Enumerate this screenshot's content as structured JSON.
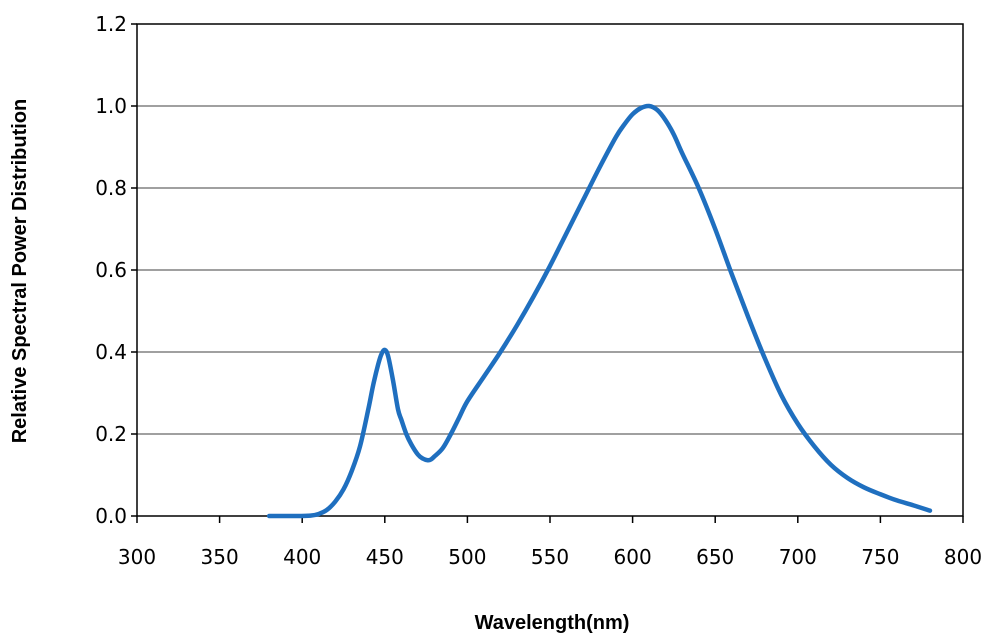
{
  "chart_data": {
    "type": "line",
    "title": "",
    "xlabel": "Wavelength(nm)",
    "ylabel": "Relative Spectral Power Distribution",
    "xlim": [
      300,
      800
    ],
    "ylim": [
      0,
      1.2
    ],
    "x_ticks": [
      300,
      350,
      400,
      450,
      500,
      550,
      600,
      650,
      700,
      750,
      800
    ],
    "y_ticks": [
      0.0,
      0.2,
      0.4,
      0.6,
      0.8,
      1.0,
      1.2
    ],
    "y_tick_labels": [
      "0.0",
      "0.2",
      "0.4",
      "0.6",
      "0.8",
      "1.0",
      "1.2"
    ],
    "grid": "horizontal",
    "legend": "none",
    "line_color": "#1f6fbf",
    "gridline_color": "#808080",
    "series": [
      {
        "x": [
          380,
          395,
          405,
          410,
          415,
          420,
          425,
          430,
          435,
          440,
          443,
          446,
          448,
          450,
          452,
          455,
          458,
          460,
          463,
          466,
          470,
          473,
          476,
          478,
          480,
          485,
          490,
          495,
          500,
          510,
          520,
          530,
          540,
          550,
          560,
          570,
          580,
          590,
          595,
          600,
          605,
          610,
          615,
          620,
          625,
          630,
          640,
          650,
          660,
          670,
          680,
          690,
          700,
          710,
          720,
          730,
          740,
          750,
          760,
          770,
          780
        ],
        "y": [
          0.0,
          0.0,
          0.001,
          0.005,
          0.015,
          0.035,
          0.065,
          0.11,
          0.17,
          0.26,
          0.32,
          0.37,
          0.395,
          0.405,
          0.39,
          0.33,
          0.26,
          0.235,
          0.2,
          0.175,
          0.15,
          0.14,
          0.136,
          0.138,
          0.145,
          0.165,
          0.2,
          0.24,
          0.28,
          0.34,
          0.4,
          0.465,
          0.535,
          0.61,
          0.69,
          0.77,
          0.85,
          0.925,
          0.955,
          0.98,
          0.995,
          1.0,
          0.99,
          0.965,
          0.93,
          0.885,
          0.8,
          0.7,
          0.59,
          0.485,
          0.385,
          0.295,
          0.225,
          0.17,
          0.125,
          0.093,
          0.07,
          0.053,
          0.038,
          0.026,
          0.013
        ]
      }
    ]
  }
}
